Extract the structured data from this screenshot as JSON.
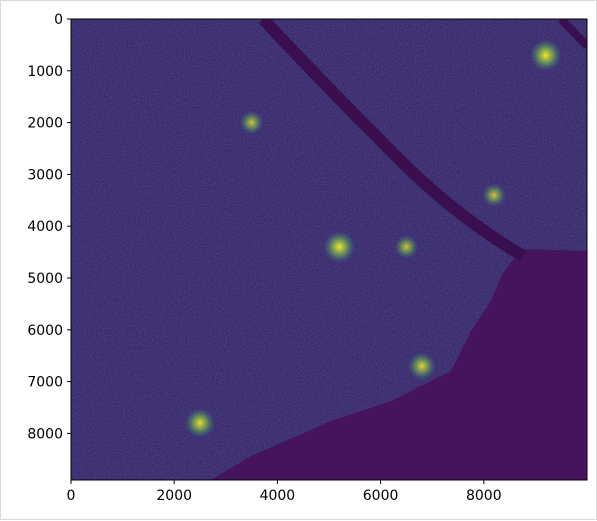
{
  "chart_data": {
    "type": "heatmap",
    "colormap": "viridis",
    "colors": {
      "background": "#440154",
      "low": "#3b2a6d",
      "mid": "#2f6b8e",
      "high": "#24a884",
      "peak": "#fde725",
      "river": "#3a0f4f",
      "estuary": "#46145c"
    },
    "image_extent": {
      "x": [
        0,
        10000
      ],
      "y": [
        0,
        8900
      ]
    },
    "y_inverted": true,
    "x_ticks": [
      0,
      2000,
      4000,
      6000,
      8000
    ],
    "y_ticks": [
      0,
      1000,
      2000,
      3000,
      4000,
      5000,
      6000,
      7000,
      8000
    ],
    "x_tick_labels": [
      "0",
      "2000",
      "4000",
      "6000",
      "8000"
    ],
    "y_tick_labels": [
      "0",
      "1000",
      "2000",
      "3000",
      "4000",
      "5000",
      "6000",
      "7000",
      "8000"
    ],
    "hotspots": [
      {
        "x": 9200,
        "y": 700,
        "value": 1.0
      },
      {
        "x": 5200,
        "y": 4400,
        "value": 1.0
      },
      {
        "x": 2500,
        "y": 7800,
        "value": 0.9
      },
      {
        "x": 6800,
        "y": 6700,
        "value": 0.8
      },
      {
        "x": 3500,
        "y": 2000,
        "value": 0.6
      },
      {
        "x": 6500,
        "y": 4400,
        "value": 0.6
      },
      {
        "x": 8200,
        "y": 3400,
        "value": 0.6
      }
    ],
    "grid": false,
    "title": "",
    "xlabel": "",
    "ylabel": ""
  }
}
